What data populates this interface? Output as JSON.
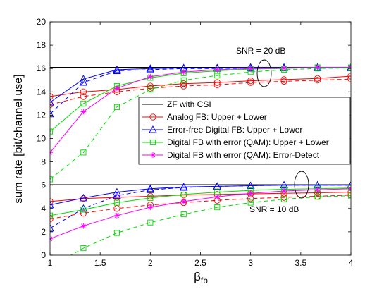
{
  "chart_data": {
    "type": "line",
    "xlabel": "β",
    "xlabel_sub": "fb",
    "ylabel": "sum rate [bit/channel use]",
    "xlim": [
      1,
      4
    ],
    "ylim": [
      0,
      20
    ],
    "xticks": [
      "1",
      "1.5",
      "2",
      "2.5",
      "3",
      "3.5",
      "4"
    ],
    "xtick_values": [
      1,
      1.5,
      2,
      2.5,
      3,
      3.5,
      4
    ],
    "yticks": [
      "0",
      "2",
      "4",
      "6",
      "8",
      "10",
      "12",
      "14",
      "16",
      "18",
      "20"
    ],
    "ytick_values": [
      0,
      2,
      4,
      6,
      8,
      10,
      12,
      14,
      16,
      18,
      20
    ],
    "grid": false,
    "legend_position": "center-right",
    "legend": [
      {
        "label": "ZF with CSI",
        "color": "#000000",
        "marker": "none"
      },
      {
        "label": "Analog FB: Upper + Lower",
        "color": "#ff0000",
        "marker": "circle"
      },
      {
        "label": "Error-free Digital FB: Upper + Lower",
        "color": "#0000ff",
        "marker": "triangle"
      },
      {
        "label": "Digital FB with error (QAM): Upper + Lower",
        "color": "#00dd00",
        "marker": "square"
      },
      {
        "label": "Digital FB with error (QAM): Error-Detect",
        "color": "#ff00ff",
        "marker": "star"
      }
    ],
    "annotations": [
      {
        "text": "SNR = 20 dB",
        "x": 3.0,
        "y": 17.4
      },
      {
        "text": "SNR = 10 dB",
        "x": 3.0,
        "y": 4.0
      }
    ],
    "x": [
      1,
      1.333,
      1.667,
      2,
      2.333,
      2.667,
      3,
      3.333,
      3.667,
      4
    ],
    "series": [
      {
        "name": "ZF with CSI",
        "color": "#000000",
        "marker": "none",
        "style": "solid",
        "values": [
          16.1,
          16.1,
          16.1,
          16.1,
          16.1,
          16.1,
          16.1,
          16.1,
          16.1,
          16.1
        ]
      },
      {
        "color": "#ff0000",
        "marker": "circle",
        "style": "solid",
        "values": [
          13.6,
          14.0,
          14.2,
          14.5,
          14.7,
          14.8,
          14.95,
          15.05,
          15.15,
          15.35
        ]
      },
      {
        "color": "#ff0000",
        "marker": "circle",
        "style": "dashed",
        "values": [
          12.9,
          13.6,
          14.0,
          14.3,
          14.5,
          14.6,
          14.8,
          14.9,
          15.0,
          15.1
        ]
      },
      {
        "color": "#0000ff",
        "marker": "triangle",
        "style": "solid",
        "values": [
          13.1,
          15.1,
          15.9,
          16.0,
          16.05,
          16.05,
          16.1,
          16.1,
          16.1,
          16.1
        ]
      },
      {
        "color": "#0000ff",
        "marker": "triangle",
        "style": "dashed",
        "values": [
          12.1,
          14.8,
          15.8,
          15.9,
          16.0,
          16.0,
          16.05,
          16.05,
          16.05,
          16.05
        ]
      },
      {
        "color": "#00dd00",
        "marker": "square",
        "style": "solid",
        "values": [
          10.6,
          13.0,
          14.5,
          15.2,
          15.6,
          15.8,
          15.95,
          16.0,
          16.1,
          16.1
        ]
      },
      {
        "color": "#00dd00",
        "marker": "square",
        "style": "dashed",
        "values": [
          6.5,
          8.8,
          12.7,
          14.2,
          15.0,
          15.4,
          15.7,
          15.9,
          16.0,
          16.05
        ]
      },
      {
        "color": "#ff00ff",
        "marker": "star",
        "style": "solid",
        "values": [
          8.8,
          12.3,
          14.3,
          15.3,
          15.7,
          15.9,
          16.0,
          16.05,
          16.1,
          16.1
        ]
      },
      {
        "name": "ZF with CSI",
        "color": "#000000",
        "marker": "none",
        "style": "solid",
        "values": [
          6.05,
          6.05,
          6.05,
          6.05,
          6.05,
          6.05,
          6.05,
          6.05,
          6.05,
          6.05
        ]
      },
      {
        "color": "#ff0000",
        "marker": "circle",
        "style": "solid",
        "values": [
          4.6,
          4.85,
          4.95,
          5.05,
          5.15,
          5.2,
          5.25,
          5.3,
          5.35,
          5.4
        ]
      },
      {
        "color": "#ff0000",
        "marker": "circle",
        "style": "dashed",
        "values": [
          3.1,
          3.6,
          4.0,
          4.3,
          4.5,
          4.7,
          4.85,
          4.95,
          5.05,
          5.15
        ]
      },
      {
        "color": "#0000ff",
        "marker": "triangle",
        "style": "solid",
        "values": [
          4.3,
          4.9,
          5.4,
          5.7,
          5.85,
          5.9,
          5.95,
          6.0,
          6.0,
          6.0
        ]
      },
      {
        "color": "#0000ff",
        "marker": "triangle",
        "style": "dashed",
        "values": [
          2.3,
          4.0,
          5.1,
          5.6,
          5.8,
          5.9,
          5.95,
          6.0,
          6.0,
          6.0
        ]
      },
      {
        "color": "#00dd00",
        "marker": "square",
        "style": "solid",
        "values": [
          3.4,
          3.9,
          4.5,
          4.9,
          5.2,
          5.4,
          5.55,
          5.65,
          5.7,
          5.75
        ]
      },
      {
        "color": "#00dd00",
        "marker": "square",
        "style": "dashed",
        "values": [
          -1.0,
          0.6,
          1.9,
          2.8,
          3.5,
          4.1,
          4.5,
          4.8,
          5.0,
          5.1
        ]
      },
      {
        "color": "#ff00ff",
        "marker": "star",
        "style": "solid",
        "values": [
          1.4,
          2.5,
          3.4,
          4.1,
          4.6,
          5.0,
          5.3,
          5.5,
          5.6,
          5.7
        ]
      }
    ]
  }
}
